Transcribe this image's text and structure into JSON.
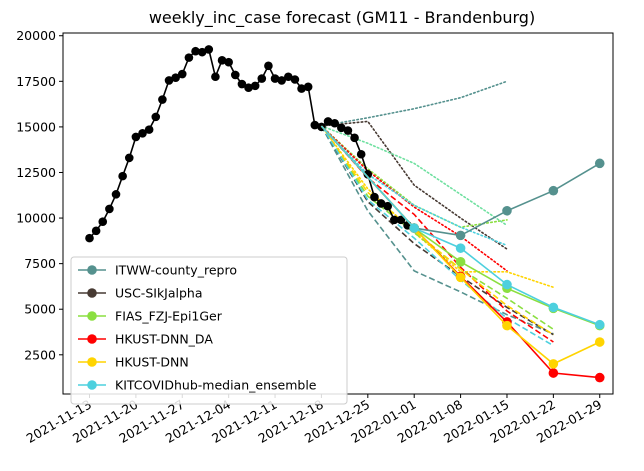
{
  "chart_data": {
    "type": "line",
    "title": "weekly_inc_case forecast (GM11 - Brandenburg)",
    "xlabel": "",
    "ylabel": "",
    "x_ticks": [
      "2021-11-13",
      "2021-11-20",
      "2021-11-27",
      "2021-12-04",
      "2021-12-11",
      "2021-12-18",
      "2021-12-25",
      "2022-01-01",
      "2022-01-08",
      "2022-01-15",
      "2022-01-22",
      "2022-01-29"
    ],
    "y_ticks": [
      2500,
      5000,
      7500,
      10000,
      12500,
      15000,
      17500,
      20000
    ],
    "ylim": [
      350,
      20150
    ],
    "xlim": [
      "2021-11-09",
      "2022-01-31"
    ],
    "legend_position": "lower-left",
    "truth": {
      "name": "",
      "color": "#000000",
      "points": [
        [
          "2021-11-13",
          8900
        ],
        [
          "2021-11-14",
          9300
        ],
        [
          "2021-11-15",
          9800
        ],
        [
          "2021-11-16",
          10500
        ],
        [
          "2021-11-17",
          11300
        ],
        [
          "2021-11-18",
          12300
        ],
        [
          "2021-11-19",
          13300
        ],
        [
          "2021-11-20",
          14450
        ],
        [
          "2021-11-21",
          14650
        ],
        [
          "2021-11-22",
          14850
        ],
        [
          "2021-11-23",
          15550
        ],
        [
          "2021-11-24",
          16500
        ],
        [
          "2021-11-25",
          17550
        ],
        [
          "2021-11-26",
          17700
        ],
        [
          "2021-11-27",
          17900
        ],
        [
          "2021-11-28",
          18800
        ],
        [
          "2021-11-29",
          19150
        ],
        [
          "2021-11-30",
          19100
        ],
        [
          "2021-12-01",
          19250
        ],
        [
          "2021-12-02",
          17750
        ],
        [
          "2021-12-03",
          18650
        ],
        [
          "2021-12-04",
          18550
        ],
        [
          "2021-12-05",
          17850
        ],
        [
          "2021-12-06",
          17350
        ],
        [
          "2021-12-07",
          17150
        ],
        [
          "2021-12-08",
          17250
        ],
        [
          "2021-12-09",
          17650
        ],
        [
          "2021-12-10",
          18350
        ],
        [
          "2021-12-11",
          17650
        ],
        [
          "2021-12-12",
          17550
        ],
        [
          "2021-12-13",
          17750
        ],
        [
          "2021-12-14",
          17600
        ],
        [
          "2021-12-15",
          17100
        ],
        [
          "2021-12-16",
          17200
        ],
        [
          "2021-12-17",
          15100
        ],
        [
          "2021-12-18",
          15000
        ],
        [
          "2021-12-19",
          15300
        ],
        [
          "2021-12-20",
          15200
        ],
        [
          "2021-12-21",
          14950
        ],
        [
          "2021-12-22",
          14800
        ],
        [
          "2021-12-23",
          14400
        ],
        [
          "2021-12-24",
          13500
        ],
        [
          "2021-12-25",
          12400
        ],
        [
          "2021-12-26",
          11150
        ],
        [
          "2021-12-27",
          10800
        ],
        [
          "2021-12-28",
          10650
        ],
        [
          "2021-12-29",
          9900
        ],
        [
          "2021-12-30",
          9900
        ],
        [
          "2021-12-31",
          9600
        ]
      ]
    },
    "series": [
      {
        "name": "ITWW-county_repro",
        "color": "#55918E",
        "points": [
          [
            "2021-12-18",
            15050
          ],
          [
            "2022-01-01",
            9450
          ],
          [
            "2022-01-08",
            9050
          ],
          [
            "2022-01-15",
            10400
          ],
          [
            "2022-01-22",
            11500
          ],
          [
            "2022-01-29",
            13000
          ]
        ]
      },
      {
        "name": "USC-SIkJalpha",
        "color": "#473A33",
        "points": []
      },
      {
        "name": "FIAS_FZJ-Epi1Ger",
        "color": "#8BDF40",
        "points": [
          [
            "2021-12-18",
            15050
          ],
          [
            "2022-01-01",
            9450
          ],
          [
            "2022-01-08",
            7600
          ],
          [
            "2022-01-15",
            6150
          ],
          [
            "2022-01-22",
            5050
          ],
          [
            "2022-01-29",
            4100
          ]
        ]
      },
      {
        "name": "HKUST-DNN_DA",
        "color": "#FF0000",
        "points": [
          [
            "2021-12-18",
            15050
          ],
          [
            "2022-01-01",
            9450
          ],
          [
            "2022-01-08",
            6800
          ],
          [
            "2022-01-15",
            4300
          ],
          [
            "2022-01-22",
            1500
          ],
          [
            "2022-01-29",
            1250
          ]
        ]
      },
      {
        "name": "HKUST-DNN",
        "color": "#FFD400",
        "points": [
          [
            "2021-12-18",
            15050
          ],
          [
            "2022-01-01",
            9450
          ],
          [
            "2022-01-08",
            6750
          ],
          [
            "2022-01-15",
            4100
          ],
          [
            "2022-01-22",
            2000
          ],
          [
            "2022-01-29",
            3200
          ]
        ]
      },
      {
        "name": "KITCOVIDhub-median_ensemble",
        "color": "#4DD0DE",
        "points": [
          [
            "2021-12-18",
            15050
          ],
          [
            "2022-01-01",
            9450
          ],
          [
            "2022-01-08",
            8350
          ],
          [
            "2022-01-15",
            6350
          ],
          [
            "2022-01-22",
            5100
          ],
          [
            "2022-01-29",
            4150
          ]
        ]
      }
    ],
    "dotted_projections": [
      {
        "color": "#55918E",
        "points": [
          [
            "2021-12-18",
            15050
          ],
          [
            "2021-12-25",
            15500
          ],
          [
            "2022-01-01",
            16000
          ],
          [
            "2022-01-08",
            16600
          ],
          [
            "2022-01-15",
            17500
          ]
        ]
      },
      {
        "color": "#473A33",
        "points": [
          [
            "2021-12-18",
            15050
          ],
          [
            "2021-12-25",
            15300
          ],
          [
            "2022-01-01",
            11800
          ],
          [
            "2022-01-08",
            10000
          ],
          [
            "2022-01-15",
            8300
          ]
        ]
      },
      {
        "color": "#8BDF40",
        "points": [
          [
            "2021-12-18",
            15050
          ],
          [
            "2021-12-25",
            12700
          ],
          [
            "2022-01-01",
            10700
          ],
          [
            "2022-01-08",
            9500
          ],
          [
            "2022-01-15",
            9900
          ]
        ]
      },
      {
        "color": "#FF0000",
        "points": [
          [
            "2021-12-18",
            15050
          ],
          [
            "2021-12-25",
            12600
          ],
          [
            "2022-01-01",
            10600
          ],
          [
            "2022-01-08",
            9000
          ],
          [
            "2022-01-15",
            7100
          ]
        ]
      },
      {
        "color": "#FFD400",
        "points": [
          [
            "2021-12-18",
            15050
          ],
          [
            "2021-12-25",
            11600
          ],
          [
            "2022-01-01",
            9200
          ],
          [
            "2022-01-08",
            7050
          ],
          [
            "2022-01-15",
            7050
          ],
          [
            "2022-01-22",
            6200
          ]
        ]
      },
      {
        "color": "#4DD0DE",
        "points": [
          [
            "2021-12-18",
            15050
          ],
          [
            "2021-12-25",
            12400
          ],
          [
            "2022-01-01",
            10700
          ],
          [
            "2022-01-08",
            9500
          ],
          [
            "2022-01-15",
            8500
          ]
        ]
      },
      {
        "color": "#6FE0A0",
        "points": [
          [
            "2021-12-18",
            15050
          ],
          [
            "2021-12-25",
            14100
          ],
          [
            "2022-01-01",
            13000
          ],
          [
            "2022-01-08",
            11300
          ],
          [
            "2022-01-15",
            9600
          ]
        ]
      }
    ],
    "dashed_projections": [
      {
        "color": "#55918E",
        "points": [
          [
            "2021-12-18",
            15050
          ],
          [
            "2021-12-25",
            10400
          ],
          [
            "2022-01-01",
            7100
          ],
          [
            "2022-01-08",
            5950
          ],
          [
            "2022-01-15",
            4700
          ],
          [
            "2022-01-22",
            3650
          ]
        ]
      },
      {
        "color": "#473A33",
        "points": [
          [
            "2021-12-18",
            15050
          ],
          [
            "2021-12-25",
            10900
          ],
          [
            "2022-01-01",
            8600
          ],
          [
            "2022-01-08",
            6800
          ],
          [
            "2022-01-15",
            5100
          ],
          [
            "2022-01-22",
            3600
          ]
        ]
      },
      {
        "color": "#8BDF40",
        "points": [
          [
            "2021-12-18",
            15050
          ],
          [
            "2021-12-25",
            11200
          ],
          [
            "2022-01-01",
            9200
          ],
          [
            "2022-01-08",
            7200
          ],
          [
            "2022-01-15",
            5600
          ],
          [
            "2022-01-22",
            3900
          ]
        ]
      },
      {
        "color": "#FF0000",
        "points": [
          [
            "2021-12-18",
            15050
          ],
          [
            "2021-12-25",
            12200
          ],
          [
            "2022-01-01",
            10200
          ],
          [
            "2022-01-08",
            7300
          ],
          [
            "2022-01-15",
            4900
          ],
          [
            "2022-01-22",
            3200
          ]
        ]
      },
      {
        "color": "#FFD400",
        "points": [
          [
            "2021-12-18",
            15050
          ],
          [
            "2021-12-25",
            11400
          ],
          [
            "2022-01-01",
            9300
          ],
          [
            "2022-01-08",
            7200
          ],
          [
            "2022-01-15",
            5200
          ],
          [
            "2022-01-22",
            3600
          ]
        ]
      },
      {
        "color": "#4DD0DE",
        "points": [
          [
            "2021-12-18",
            15050
          ],
          [
            "2021-12-25",
            11000
          ],
          [
            "2022-01-01",
            8900
          ],
          [
            "2022-01-08",
            6600
          ],
          [
            "2022-01-15",
            4500
          ],
          [
            "2022-01-22",
            3000
          ]
        ]
      }
    ]
  }
}
